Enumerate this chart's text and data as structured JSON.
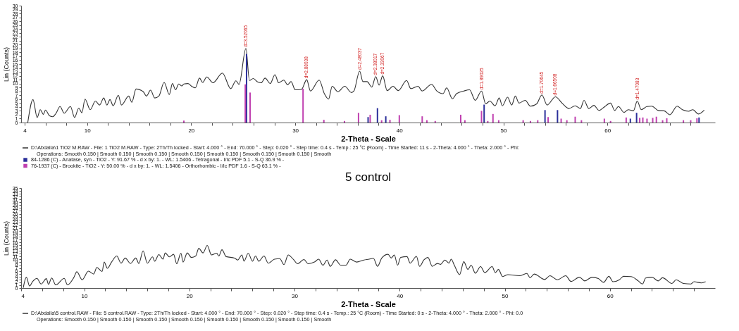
{
  "chart_data": [
    {
      "type": "line",
      "xlabel": "2-Theta - Scale",
      "ylabel": "Lin (Counts)",
      "xlim": [
        4,
        70
      ],
      "xticks": [
        4,
        {
          "value": 6,
          "label": null
        },
        {
          "value": 8,
          "label": null
        },
        10,
        {
          "value": 12,
          "label": null
        },
        {
          "value": 14,
          "label": null
        },
        {
          "value": 16,
          "label": null
        },
        {
          "value": 18,
          "label": null
        },
        20,
        {
          "value": 22,
          "label": null
        },
        {
          "value": 24,
          "label": null
        },
        {
          "value": 26,
          "label": null
        },
        {
          "value": 28,
          "label": null
        },
        30,
        {
          "value": 32,
          "label": null
        },
        {
          "value": 34,
          "label": null
        },
        {
          "value": 36,
          "label": null
        },
        {
          "value": 38,
          "label": null
        },
        40,
        {
          "value": 42,
          "label": null
        },
        {
          "value": 44,
          "label": null
        },
        {
          "value": 46,
          "label": null
        },
        {
          "value": 48,
          "label": null
        },
        50,
        {
          "value": 52,
          "label": null
        },
        {
          "value": 54,
          "label": null
        },
        {
          "value": 56,
          "label": null
        },
        {
          "value": 58,
          "label": null
        },
        60,
        {
          "value": 62,
          "label": null
        },
        {
          "value": 64,
          "label": null
        },
        {
          "value": 66,
          "label": null
        },
        {
          "value": 68,
          "label": null
        }
      ],
      "ylim": [
        0,
        30
      ],
      "yticks": [
        0,
        1,
        2,
        3,
        4,
        5,
        6,
        7,
        8,
        9,
        10,
        11,
        12,
        13,
        14,
        15,
        16,
        17,
        18,
        19,
        20,
        21,
        22,
        23,
        24,
        25,
        26,
        27,
        28,
        29,
        30
      ],
      "grid": false,
      "legend": "bottom",
      "series": [
        {
          "type": "line",
          "name": "D:\\Abdalla\\1 TiO2 M.RAW - File: 1 TiO2 M.RAW - Type: 2Th/Th locked - Start: 4.000 ° - End: 70.000 ° - Step: 0.020 ° - Step time: 0.4 s - Temp.: 25 °C (Room) - Time Started: 11 s - 2-Theta: 4.000 ° - Theta: 2.000 ° - Phi:",
          "color": "#333333",
          "x": [
            4.3,
            4.8,
            5.2,
            5.5,
            5.8,
            6.0,
            6.4,
            6.7,
            7.0,
            7.4,
            7.8,
            8.4,
            8.8,
            9.2,
            9.5,
            9.8,
            10.3,
            10.8,
            11.2,
            11.6,
            11.9,
            12.2,
            12.5,
            13.0,
            13.3,
            14.0,
            14.3,
            14.7,
            15.4,
            15.7,
            16.1,
            16.5,
            16.9,
            17.4,
            17.9,
            18.2,
            18.5,
            18.8,
            19.1,
            19.3,
            19.7,
            20.1,
            20.4,
            20.8,
            21.1,
            21.5,
            22.1,
            23.0,
            23.8,
            24.3,
            24.6,
            25.26,
            25.6,
            25.96,
            26.4,
            26.73,
            27.1,
            27.6,
            28.05,
            28.4,
            28.9,
            29.26,
            29.6,
            30.0,
            30.6,
            31.1,
            31.46,
            32.3,
            32.8,
            33.2,
            33.55,
            34.1,
            34.76,
            35.4,
            35.64,
            36.19,
            36.5,
            36.9,
            37.36,
            37.73,
            38.06,
            38.4,
            38.83,
            39.4,
            39.9,
            40.7,
            41.1,
            41.8,
            42.2,
            43.1,
            43.6,
            44.2,
            44.55,
            45.1,
            45.5,
            46.2,
            46.75,
            47.3,
            47.9,
            48.3,
            48.7,
            49.2,
            49.6,
            49.9,
            50.4,
            50.8,
            51.15,
            51.5,
            52.1,
            52.6,
            53.2,
            53.7,
            54.2,
            55.0,
            55.7,
            56.3,
            56.9,
            57.4,
            57.75,
            58.2,
            58.7,
            59.2,
            59.6,
            60.3,
            60.7,
            61.05,
            61.6,
            62.0,
            62.5,
            62.86,
            63.25,
            63.8,
            64.25,
            64.9,
            65.45,
            66.0,
            66.7,
            67.2,
            67.8,
            68.2,
            68.75,
            69.3
          ],
          "values": [
            0,
            5.9,
            1.3,
            3.3,
            2.1,
            3.2,
            1.7,
            1.5,
            2.3,
            4.1,
            2.4,
            4.1,
            1.3,
            3.7,
            2.5,
            6.0,
            3.3,
            5.5,
            4.5,
            6.3,
            4.5,
            5.9,
            4.3,
            7.0,
            4.5,
            6.8,
            5.2,
            8.6,
            7.9,
            6.8,
            8.3,
            6.3,
            6.8,
            10.3,
            7.2,
            10.0,
            8.4,
            9.9,
            9.4,
            9.9,
            10.0,
            9.2,
            8.9,
            11.4,
            10.3,
            11.7,
            10.2,
            12.7,
            8.7,
            10.7,
            9.8,
            19.0,
            10.8,
            11.3,
            10.4,
            10.2,
            11.4,
            10.0,
            12.3,
            10.2,
            10.9,
            9.7,
            10.5,
            8.4,
            8.5,
            11.0,
            8.1,
            10.9,
            7.4,
            6.0,
            9.3,
            7.9,
            9.3,
            7.7,
            8.1,
            13.2,
            10.5,
            10.5,
            9.1,
            11.8,
            9.6,
            12.0,
            8.2,
            9.3,
            8.2,
            10.8,
            8.7,
            9.3,
            8.1,
            9.8,
            8.1,
            7.4,
            8.9,
            6.1,
            7.4,
            8.1,
            8.4,
            5.7,
            8.1,
            4.8,
            5.5,
            4.3,
            6.3,
            4.3,
            6.5,
            4.5,
            6.8,
            5.0,
            5.7,
            4.2,
            4.8,
            7.1,
            4.5,
            6.6,
            4.8,
            3.6,
            4.3,
            3.6,
            5.7,
            3.6,
            4.4,
            3.1,
            3.8,
            5.0,
            3.1,
            4.1,
            2.6,
            3.3,
            3.0,
            5.5,
            3.3,
            4.1,
            4.2,
            3.1,
            3.0,
            2.0,
            4.2,
            3.3,
            2.9,
            3.3,
            2.2,
            3.2
          ]
        },
        {
          "type": "bar",
          "name": "84-1286 (C) - Anatase, syn - TiO2 - Y: 91.67 % - d x by: 1. - WL: 1.5406 - Tetragonal - I/Ic PDF 5.1 - S-Q 36.9 % -",
          "color": "#2b2f9a",
          "x": [
            25.32,
            37.0,
            37.9,
            38.7,
            48.15,
            54.0,
            55.2,
            62.2,
            62.8,
            68.8
          ],
          "values": [
            17.6,
            1.4,
            3.7,
            1.6,
            4.6,
            3.2,
            3.2,
            1.0,
            2.5,
            1.3
          ]
        },
        {
          "type": "bar",
          "name": "76-1937 (C) - Brookite - TiO2 - Y: 50.00 % - d x by: 1. - WL: 1.5406 - Orthorhombic - I/Ic PDF 1.6 - S-Q 63.1 % -",
          "color": "#c040b0",
          "x": [
            19.3,
            25.2,
            25.66,
            30.75,
            32.75,
            34.73,
            36.08,
            37.2,
            38.3,
            39.1,
            40.0,
            42.2,
            42.65,
            43.45,
            45.9,
            46.3,
            47.9,
            48.5,
            49.0,
            49.55,
            51.9,
            52.6,
            53.3,
            54.3,
            55.55,
            56.1,
            56.9,
            57.5,
            59.7,
            60.3,
            61.8,
            63.1,
            63.4,
            63.8,
            64.35,
            64.7,
            65.3,
            65.7,
            67.3,
            68.0,
            68.6
          ],
          "values": [
            0.5,
            9.8,
            7.7,
            8.7,
            0.7,
            0.4,
            2.5,
            2.0,
            0.6,
            0.7,
            1.9,
            1.6,
            0.6,
            0.4,
            2.0,
            0.6,
            3.0,
            0.4,
            2.2,
            0.6,
            0.6,
            0.4,
            0.6,
            1.4,
            1.0,
            0.6,
            1.5,
            0.6,
            1.0,
            0.4,
            1.3,
            1.2,
            1.3,
            1.0,
            1.2,
            1.5,
            0.6,
            1.1,
            0.6,
            0.6,
            1.1
          ]
        }
      ],
      "annotations": [
        "Operations: Smooth 0.150 | Smooth 0.150 | Smooth 0.150 | Smooth 0.150 | Smooth 0.150 | Smooth 0.150 | Smooth 0.150 | Smooth",
        {
          "text": "d=3.52065",
          "x": 25.26,
          "y": 19.0
        },
        {
          "text": "d=2.88038",
          "x": 31.1,
          "y": 11.0
        },
        {
          "text": "d=2.48037",
          "x": 36.19,
          "y": 13.2
        },
        {
          "text": "d=2.38017",
          "x": 37.73,
          "y": 11.8
        },
        {
          "text": "d=2.33067",
          "x": 38.4,
          "y": 12.0
        },
        {
          "text": "d=1.89025",
          "x": 47.9,
          "y": 8.1
        },
        {
          "text": "d=1.70645",
          "x": 53.7,
          "y": 7.1
        },
        {
          "text": "d=1.66508",
          "x": 55.0,
          "y": 6.6
        },
        {
          "text": "d=1.47083",
          "x": 62.86,
          "y": 5.5
        }
      ]
    },
    {
      "type": "line",
      "title": "5 control",
      "xlabel": "2-Theta - Scale",
      "ylabel": "Lin (Counts)",
      "xlim": [
        4,
        70
      ],
      "xticks": [
        4,
        {
          "value": 6,
          "label": null
        },
        {
          "value": 8,
          "label": null
        },
        10,
        {
          "value": 12,
          "label": null
        },
        {
          "value": 14,
          "label": null
        },
        {
          "value": 16,
          "label": null
        },
        {
          "value": 18,
          "label": null
        },
        20,
        {
          "value": 22,
          "label": null
        },
        {
          "value": 24,
          "label": null
        },
        {
          "value": 26,
          "label": null
        },
        {
          "value": 28,
          "label": null
        },
        30,
        {
          "value": 32,
          "label": null
        },
        {
          "value": 34,
          "label": null
        },
        {
          "value": 36,
          "label": null
        },
        {
          "value": 38,
          "label": null
        },
        40,
        {
          "value": 42,
          "label": null
        },
        {
          "value": 44,
          "label": null
        },
        {
          "value": 46,
          "label": null
        },
        {
          "value": 48,
          "label": null
        },
        50,
        {
          "value": 52,
          "label": null
        },
        {
          "value": 54,
          "label": null
        },
        {
          "value": 56,
          "label": null
        },
        {
          "value": 58,
          "label": null
        },
        60,
        {
          "value": 62,
          "label": null
        },
        {
          "value": 64,
          "label": null
        },
        {
          "value": 66,
          "label": null
        },
        {
          "value": 68,
          "label": null
        }
      ],
      "ylim": [
        0,
        35
      ],
      "yticks": [
        0,
        1,
        2,
        3,
        4,
        5,
        6,
        7,
        8,
        9,
        10,
        11,
        12,
        13,
        14,
        15,
        16,
        17,
        18,
        19,
        20,
        21,
        22,
        23,
        24,
        25,
        26,
        27,
        28,
        29,
        30,
        31,
        32,
        33,
        34,
        35
      ],
      "grid": false,
      "legend": "bottom",
      "series": [
        {
          "type": "line",
          "name": "D:\\Abdalla\\5 control.RAW - File: 5 control.RAW - Type: 2Th/Th locked - Start: 4.000 ° - End: 70.000 ° - Step: 0.020 ° - Step time: 0.4 s - Temp.: 25 °C (Room) - Time Started: 0 s - 2-Theta: 4.000 ° - Theta: 2.000 ° - Phi: 0.0",
          "color": "#333333",
          "x": [
            4.2,
            4.5,
            4.8,
            5.1,
            5.5,
            5.9,
            6.4,
            6.6,
            6.9,
            7.3,
            8.1,
            8.4,
            9.0,
            9.3,
            9.8,
            10.4,
            10.9,
            11.2,
            11.7,
            11.9,
            12.2,
            12.6,
            13.1,
            13.5,
            13.9,
            14.4,
            14.9,
            15.2,
            15.6,
            16.0,
            16.5,
            16.7,
            17.1,
            17.5,
            17.7,
            18.1,
            18.5,
            18.8,
            19.2,
            19.4,
            19.8,
            20.2,
            20.6,
            20.9,
            21.3,
            21.7,
            22.1,
            22.6,
            22.8,
            23.1,
            23.5,
            24.3,
            24.6,
            25.0,
            25.2,
            25.6,
            26.0,
            26.3,
            26.6,
            27.1,
            27.5,
            28.1,
            28.6,
            29.0,
            29.4,
            29.9,
            30.3,
            30.9,
            31.3,
            31.9,
            32.3,
            32.7,
            33.1,
            33.4,
            33.9,
            34.4,
            34.9,
            35.3,
            35.9,
            36.6,
            37.1,
            37.5,
            37.9,
            38.3,
            38.9,
            39.2,
            39.5,
            39.8,
            40.1,
            40.7,
            41.0,
            41.6,
            41.9,
            42.3,
            42.7,
            43.1,
            43.6,
            43.9,
            44.3,
            44.7,
            44.9,
            45.2,
            45.7,
            46.1,
            46.5,
            46.8,
            47.2,
            47.7,
            48.1,
            48.8,
            49.1,
            49.4,
            49.8,
            50.3,
            51.4,
            52.1,
            52.4,
            52.8,
            53.8,
            54.3,
            55.0,
            55.8,
            56.3,
            57.1,
            57.6,
            58.3,
            58.9,
            59.4,
            59.9,
            60.3,
            60.9,
            61.3,
            62.0,
            62.7,
            63.1,
            63.4,
            64.0,
            64.6,
            65.0,
            65.9,
            66.3,
            67.0,
            67.7,
            68.0,
            68.7,
            69.1
          ],
          "values": [
            0.1,
            3.8,
            0.7,
            2.3,
            3.4,
            1.4,
            3.3,
            1.3,
            3.5,
            1.1,
            3.4,
            1.1,
            3.6,
            5.7,
            2.9,
            5.9,
            4.9,
            7.2,
            5.8,
            9.1,
            6.9,
            9.1,
            11.2,
            8.7,
            10.5,
            8.6,
            10.5,
            8.6,
            13.0,
            8.7,
            10.9,
            9.4,
            11.7,
            10.1,
            12.3,
            10.9,
            11.8,
            8.5,
            12.2,
            9.1,
            12.3,
            10.7,
            11.2,
            13.9,
            12.3,
            14.9,
            11.6,
            12.2,
            11.2,
            13.4,
            11.0,
            10.5,
            9.8,
            11.6,
            9.4,
            12.2,
            9.4,
            11.2,
            9.4,
            11.2,
            8.7,
            10.1,
            10.3,
            8.2,
            11.6,
            10.0,
            8.5,
            10.0,
            8.5,
            9.1,
            10.1,
            8.0,
            9.8,
            7.6,
            9.9,
            8.0,
            8.0,
            10.1,
            9.1,
            9.8,
            10.1,
            10.4,
            7.6,
            10.5,
            11.8,
            10.5,
            11.6,
            8.0,
            10.7,
            11.0,
            8.7,
            11.1,
            7.6,
            9.8,
            10.7,
            7.6,
            8.6,
            8.3,
            9.8,
            8.7,
            10.1,
            8.0,
            4.7,
            9.2,
            6.5,
            8.0,
            5.2,
            7.5,
            5.4,
            7.5,
            5.4,
            6.5,
            4.0,
            4.7,
            4.3,
            5.1,
            3.6,
            4.9,
            3.0,
            4.3,
            2.9,
            4.3,
            2.3,
            3.8,
            2.5,
            3.8,
            3.3,
            2.0,
            4.1,
            2.2,
            2.9,
            4.1,
            4.0,
            2.5,
            1.4,
            3.5,
            3.8,
            2.5,
            3.6,
            1.6,
            2.9,
            1.6,
            1.4,
            2.2,
            1.8,
            2.2
          ]
        }
      ],
      "annotations": [
        "Operations: Smooth 0.150 | Smooth 0.150 | Smooth 0.150 | Smooth 0.150 | Smooth 0.150 | Smooth 0.150 | Smooth 0.150 | Smooth"
      ]
    }
  ]
}
